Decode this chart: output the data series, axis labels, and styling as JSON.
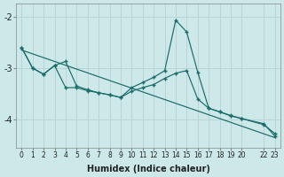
{
  "xlabel": "Humidex (Indice chaleur)",
  "bg_color": "#cce8e8",
  "grid_color": "#b8d4d4",
  "line_color": "#1a6b6b",
  "xtick_vals": [
    0,
    1,
    2,
    3,
    4,
    5,
    6,
    7,
    8,
    9,
    10,
    11,
    12,
    13,
    14,
    15,
    16,
    17,
    18,
    19,
    20,
    22,
    23
  ],
  "ytick_vals": [
    -4,
    -3,
    -2
  ],
  "xlim": [
    -0.5,
    23.5
  ],
  "ylim": [
    -4.55,
    -1.75
  ],
  "line1_x": [
    0,
    1,
    2,
    3,
    4,
    5,
    6,
    7,
    8,
    9,
    10,
    11,
    12,
    13,
    14,
    15,
    16,
    17,
    18,
    19,
    20,
    22,
    23
  ],
  "line1_y": [
    -2.6,
    -3.0,
    -3.12,
    -2.95,
    -3.38,
    -3.38,
    -3.44,
    -3.48,
    -3.52,
    -3.57,
    -3.45,
    -3.38,
    -3.32,
    -3.2,
    -3.1,
    -3.05,
    -3.6,
    -3.78,
    -3.85,
    -3.92,
    -3.98,
    -4.1,
    -4.27
  ],
  "line2_x": [
    0,
    1,
    2,
    3,
    4,
    5,
    6,
    7,
    8,
    9,
    10,
    11,
    12,
    13,
    14,
    15,
    16,
    17,
    18,
    19,
    20,
    22,
    23
  ],
  "line2_y": [
    -2.6,
    -3.0,
    -3.12,
    -2.95,
    -2.87,
    -3.35,
    -3.42,
    -3.48,
    -3.52,
    -3.57,
    -3.38,
    -3.28,
    -3.18,
    -3.05,
    -2.07,
    -2.3,
    -3.08,
    -3.78,
    -3.85,
    -3.93,
    -3.98,
    -4.08,
    -4.32
  ],
  "trend_x": [
    0,
    23
  ],
  "trend_y": [
    -2.65,
    -4.35
  ]
}
